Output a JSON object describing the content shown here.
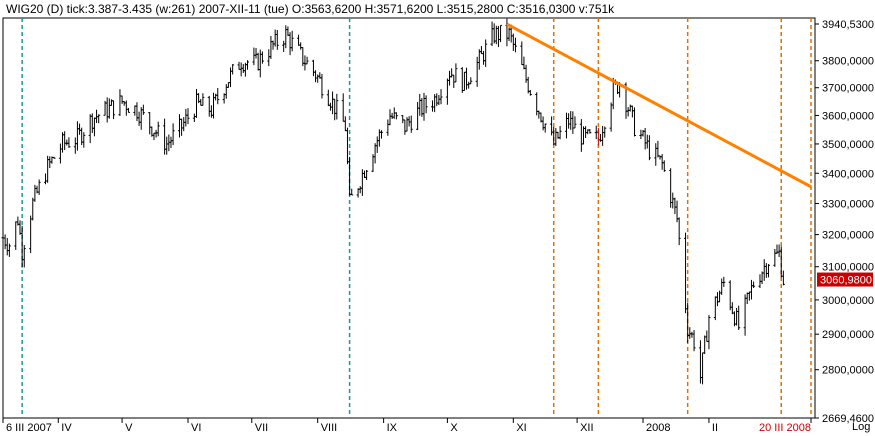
{
  "header": {
    "text": "WIG20   (D)  tick:3.387-3.435 (w:261)   2007-XII-11 (tue)   O:3563,6200 H:3571,6200 L:3515,2800 C:3516,0300 v:751k"
  },
  "colors": {
    "bars": "#000000",
    "highlight_bar": "#cc0000",
    "trendline": "#ff8000",
    "cyan_lines": "#1a9a9a",
    "orange_lines": "#e07000",
    "price_badge_bg": "#cc0000",
    "price_badge_text": "#ffffff"
  },
  "chart_data": {
    "type": "ohlc",
    "y_scale": "log",
    "ylim": [
      2669.46,
      3940.53
    ],
    "y_ticks": [
      "3940,5300",
      "3800,0000",
      "3700,0000",
      "3600,0000",
      "3500,0000",
      "3400,0000",
      "3300,0000",
      "3200,0000",
      "3100,0000",
      "3000,0000",
      "2900,0000",
      "2800,0000",
      "2669,4600"
    ],
    "y_tick_values": [
      3940.53,
      3800,
      3700,
      3600,
      3500,
      3400,
      3300,
      3200,
      3100,
      3000,
      2900,
      2800,
      2669.46
    ],
    "last_price": "3060,9800",
    "last_price_value": 3060.98,
    "x_labels": [
      "6 III 2007",
      "IV",
      "V",
      "VI",
      "VII",
      "VIII",
      "IX",
      "X",
      "XI",
      "XII",
      "2008",
      "II",
      "20 III 2008"
    ],
    "x_label_dates": [
      "2007-03-06",
      "2007-04-01",
      "2007-05-01",
      "2007-06-01",
      "2007-07-01",
      "2007-08-01",
      "2007-09-01",
      "2007-10-01",
      "2007-11-01",
      "2007-12-01",
      "2008-01-01",
      "2008-02-01",
      "2008-03-20"
    ],
    "y_axis_label": "Log",
    "x_range": [
      "2007-03-06",
      "2008-03-20"
    ],
    "cyan_markers": [
      "2007-03-15",
      "2007-08-16"
    ],
    "orange_markers": [
      "2007-11-20",
      "2007-12-11",
      "2008-01-22",
      "2008-03-06",
      "2008-03-20"
    ],
    "trendline": {
      "from": {
        "date": "2007-10-29",
        "price": 3940
      },
      "to": {
        "date": "2008-03-20",
        "price": 3355
      }
    },
    "highlight_date": "2007-12-11",
    "closes": [
      [
        "2007-03-06",
        3190
      ],
      [
        "2007-03-09",
        3170
      ],
      [
        "2007-03-13",
        3250
      ],
      [
        "2007-03-15",
        3150
      ],
      [
        "2007-03-20",
        3300
      ],
      [
        "2007-03-27",
        3420
      ],
      [
        "2007-04-03",
        3500
      ],
      [
        "2007-04-10",
        3520
      ],
      [
        "2007-04-17",
        3590
      ],
      [
        "2007-04-24",
        3620
      ],
      [
        "2007-05-01",
        3650
      ],
      [
        "2007-05-08",
        3620
      ],
      [
        "2007-05-15",
        3560
      ],
      [
        "2007-05-22",
        3500
      ],
      [
        "2007-05-29",
        3560
      ],
      [
        "2007-06-05",
        3640
      ],
      [
        "2007-06-12",
        3620
      ],
      [
        "2007-06-19",
        3720
      ],
      [
        "2007-06-26",
        3800
      ],
      [
        "2007-07-03",
        3790
      ],
      [
        "2007-07-10",
        3850
      ],
      [
        "2007-07-17",
        3900
      ],
      [
        "2007-07-24",
        3820
      ],
      [
        "2007-07-31",
        3750
      ],
      [
        "2007-08-07",
        3660
      ],
      [
        "2007-08-14",
        3560
      ],
      [
        "2007-08-16",
        3300
      ],
      [
        "2007-08-21",
        3380
      ],
      [
        "2007-08-28",
        3500
      ],
      [
        "2007-09-04",
        3600
      ],
      [
        "2007-09-11",
        3560
      ],
      [
        "2007-09-18",
        3620
      ],
      [
        "2007-09-25",
        3660
      ],
      [
        "2007-10-02",
        3760
      ],
      [
        "2007-10-09",
        3720
      ],
      [
        "2007-10-16",
        3800
      ],
      [
        "2007-10-23",
        3900
      ],
      [
        "2007-10-30",
        3900
      ],
      [
        "2007-11-06",
        3750
      ],
      [
        "2007-11-13",
        3620
      ],
      [
        "2007-11-20",
        3500
      ],
      [
        "2007-11-27",
        3580
      ],
      [
        "2007-12-04",
        3520
      ],
      [
        "2007-12-11",
        3516
      ],
      [
        "2007-12-18",
        3690
      ],
      [
        "2007-12-21",
        3720
      ],
      [
        "2007-12-28",
        3560
      ],
      [
        "2008-01-04",
        3480
      ],
      [
        "2008-01-10",
        3430
      ],
      [
        "2008-01-17",
        3250
      ],
      [
        "2008-01-22",
        2920
      ],
      [
        "2008-01-25",
        2880
      ],
      [
        "2008-01-28",
        2780
      ],
      [
        "2008-02-01",
        2950
      ],
      [
        "2008-02-08",
        3050
      ],
      [
        "2008-02-15",
        2920
      ],
      [
        "2008-02-22",
        3050
      ],
      [
        "2008-02-29",
        3120
      ],
      [
        "2008-03-05",
        3140
      ],
      [
        "2008-03-07",
        3061
      ]
    ]
  }
}
